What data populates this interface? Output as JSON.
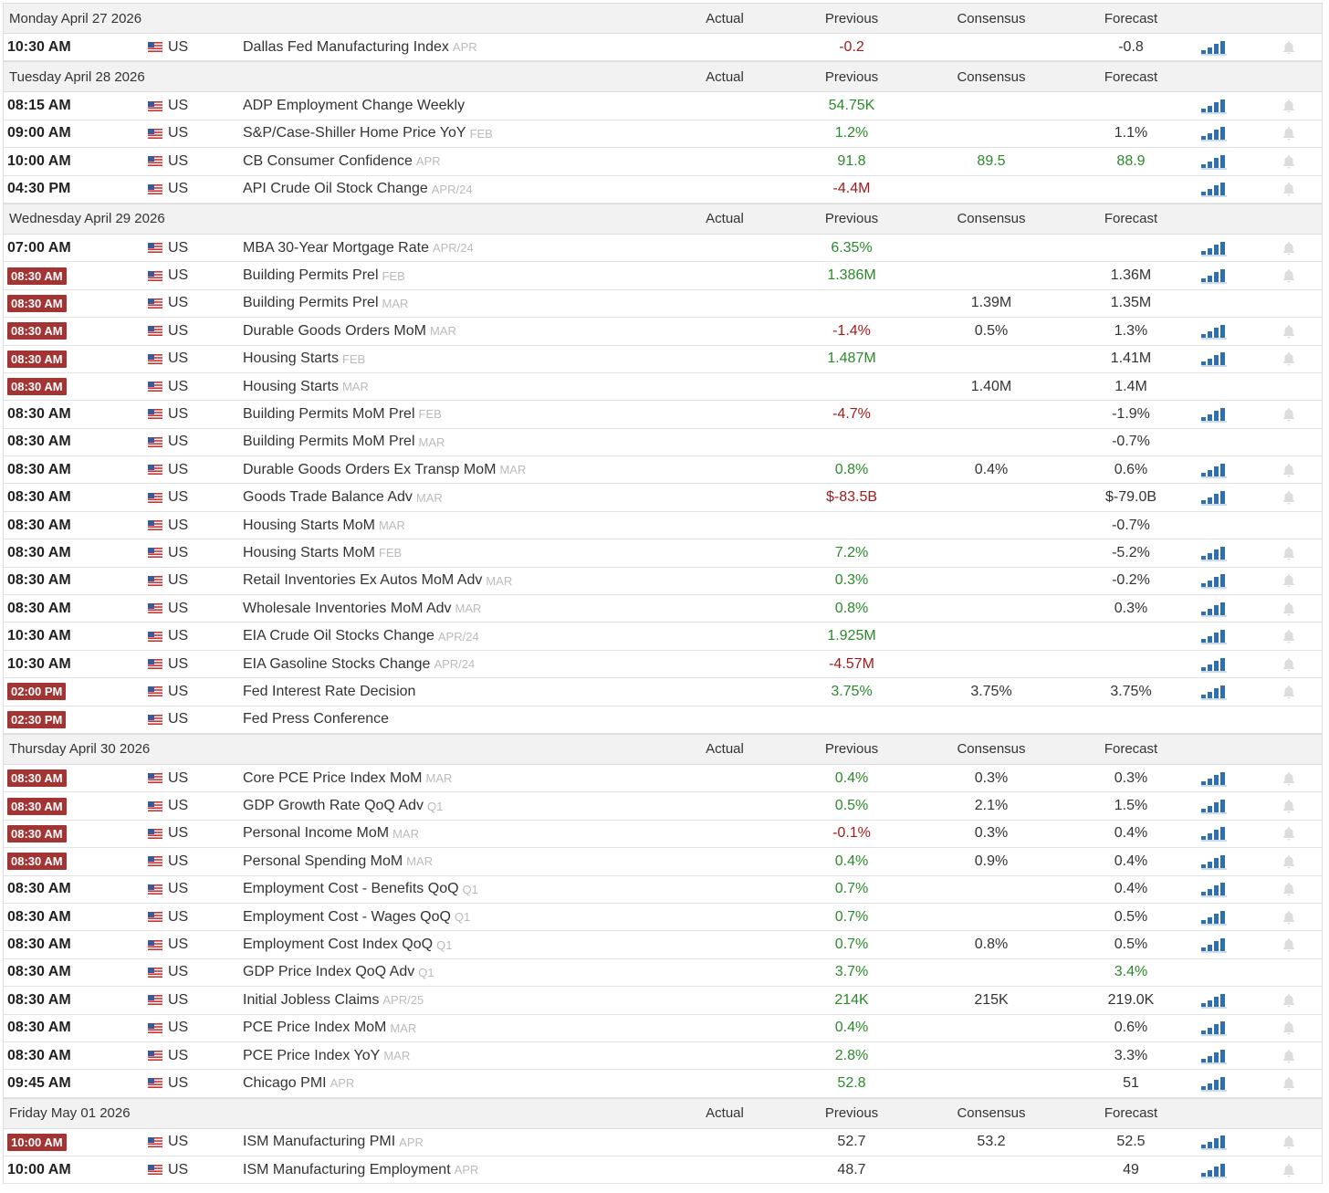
{
  "columns": [
    "Actual",
    "Previous",
    "Consensus",
    "Forecast"
  ],
  "days": [
    {
      "date": "Monday April 27 2026",
      "events": [
        {
          "time": "10:30 AM",
          "country": "US",
          "event": "Dallas Fed Manufacturing Index",
          "period": "APR",
          "previous": "-0.2",
          "previous_color": "#a01c1c",
          "forecast": "-0.8",
          "chart": true
        }
      ]
    },
    {
      "date": "Tuesday April 28 2026",
      "events": [
        {
          "time": "08:15 AM",
          "country": "US",
          "event": "ADP Employment Change Weekly",
          "previous": "54.75K",
          "previous_color": "#2a8a2a",
          "chart": true
        },
        {
          "time": "09:00 AM",
          "country": "US",
          "event": "S&P/Case-Shiller Home Price YoY",
          "period": "FEB",
          "previous": "1.2%",
          "previous_color": "#2a8a2a",
          "forecast": "1.1%",
          "chart": true
        },
        {
          "time": "10:00 AM",
          "country": "US",
          "event": "CB Consumer Confidence",
          "period": "APR",
          "previous": "91.8",
          "previous_color": "#2a8a2a",
          "consensus": "89.5",
          "consensus_color": "#2a8a2a",
          "forecast": "88.9",
          "forecast_color": "#2a8a2a",
          "chart": true
        },
        {
          "time": "04:30 PM",
          "country": "US",
          "event": "API Crude Oil Stock Change",
          "period": "APR/24",
          "previous": "-4.4M",
          "previous_color": "#a01c1c",
          "chart": true
        }
      ]
    },
    {
      "date": "Wednesday April 29 2026",
      "events": [
        {
          "time": "07:00 AM",
          "country": "US",
          "event": "MBA 30-Year Mortgage Rate",
          "period": "APR/24",
          "previous": "6.35%",
          "previous_color": "#2a8a2a",
          "chart": true
        },
        {
          "time": "08:30 AM",
          "highlight": true,
          "country": "US",
          "event": "Building Permits Prel",
          "period": "FEB",
          "previous": "1.386M",
          "previous_color": "#2a8a2a",
          "forecast": "1.36M",
          "chart": true
        },
        {
          "time": "08:30 AM",
          "highlight": true,
          "country": "US",
          "event": "Building Permits Prel",
          "period": "MAR",
          "consensus": "1.39M",
          "forecast": "1.35M"
        },
        {
          "time": "08:30 AM",
          "highlight": true,
          "country": "US",
          "event": "Durable Goods Orders MoM",
          "period": "MAR",
          "previous": "-1.4%",
          "previous_color": "#a01c1c",
          "consensus": "0.5%",
          "forecast": "1.3%",
          "chart": true
        },
        {
          "time": "08:30 AM",
          "highlight": true,
          "country": "US",
          "event": "Housing Starts",
          "period": "FEB",
          "previous": "1.487M",
          "previous_color": "#2a8a2a",
          "forecast": "1.41M",
          "chart": true
        },
        {
          "time": "08:30 AM",
          "highlight": true,
          "country": "US",
          "event": "Housing Starts",
          "period": "MAR",
          "consensus": "1.40M",
          "forecast": "1.4M"
        },
        {
          "time": "08:30 AM",
          "country": "US",
          "event": "Building Permits MoM Prel",
          "period": "FEB",
          "previous": "-4.7%",
          "previous_color": "#a01c1c",
          "forecast": "-1.9%",
          "chart": true
        },
        {
          "time": "08:30 AM",
          "country": "US",
          "event": "Building Permits MoM Prel",
          "period": "MAR",
          "forecast": "-0.7%"
        },
        {
          "time": "08:30 AM",
          "country": "US",
          "event": "Durable Goods Orders Ex Transp MoM",
          "period": "MAR",
          "previous": "0.8%",
          "previous_color": "#2a8a2a",
          "consensus": "0.4%",
          "forecast": "0.6%",
          "chart": true
        },
        {
          "time": "08:30 AM",
          "country": "US",
          "event": "Goods Trade Balance Adv",
          "period": "MAR",
          "previous": "$-83.5B",
          "previous_color": "#a01c1c",
          "forecast": "$-79.0B",
          "chart": true
        },
        {
          "time": "08:30 AM",
          "country": "US",
          "event": "Housing Starts MoM",
          "period": "MAR",
          "forecast": "-0.7%"
        },
        {
          "time": "08:30 AM",
          "country": "US",
          "event": "Housing Starts MoM",
          "period": "FEB",
          "previous": "7.2%",
          "previous_color": "#2a8a2a",
          "forecast": "-5.2%",
          "chart": true
        },
        {
          "time": "08:30 AM",
          "country": "US",
          "event": "Retail Inventories Ex Autos MoM Adv",
          "period": "MAR",
          "previous": "0.3%",
          "previous_color": "#2a8a2a",
          "forecast": "-0.2%",
          "chart": true
        },
        {
          "time": "08:30 AM",
          "country": "US",
          "event": "Wholesale Inventories MoM Adv",
          "period": "MAR",
          "previous": "0.8%",
          "previous_color": "#2a8a2a",
          "forecast": "0.3%",
          "chart": true
        },
        {
          "time": "10:30 AM",
          "country": "US",
          "event": "EIA Crude Oil Stocks Change",
          "period": "APR/24",
          "previous": "1.925M",
          "previous_color": "#2a8a2a",
          "chart": true
        },
        {
          "time": "10:30 AM",
          "country": "US",
          "event": "EIA Gasoline Stocks Change",
          "period": "APR/24",
          "previous": "-4.57M",
          "previous_color": "#a01c1c",
          "chart": true
        },
        {
          "time": "02:00 PM",
          "highlight": true,
          "country": "US",
          "event": "Fed Interest Rate Decision",
          "previous": "3.75%",
          "previous_color": "#2a8a2a",
          "consensus": "3.75%",
          "forecast": "3.75%",
          "chart": true
        },
        {
          "time": "02:30 PM",
          "highlight": true,
          "country": "US",
          "event": "Fed Press Conference"
        }
      ]
    },
    {
      "date": "Thursday April 30 2026",
      "events": [
        {
          "time": "08:30 AM",
          "highlight": true,
          "country": "US",
          "event": "Core PCE Price Index MoM",
          "period": "MAR",
          "previous": "0.4%",
          "previous_color": "#2a8a2a",
          "consensus": "0.3%",
          "forecast": "0.3%",
          "chart": true
        },
        {
          "time": "08:30 AM",
          "highlight": true,
          "country": "US",
          "event": "GDP Growth Rate QoQ Adv",
          "period": "Q1",
          "previous": "0.5%",
          "previous_color": "#2a8a2a",
          "consensus": "2.1%",
          "forecast": "1.5%",
          "chart": true
        },
        {
          "time": "08:30 AM",
          "highlight": true,
          "country": "US",
          "event": "Personal Income MoM",
          "period": "MAR",
          "previous": "-0.1%",
          "previous_color": "#a01c1c",
          "consensus": "0.3%",
          "forecast": "0.4%",
          "chart": true
        },
        {
          "time": "08:30 AM",
          "highlight": true,
          "country": "US",
          "event": "Personal Spending MoM",
          "period": "MAR",
          "previous": "0.4%",
          "previous_color": "#2a8a2a",
          "consensus": "0.9%",
          "forecast": "0.4%",
          "chart": true
        },
        {
          "time": "08:30 AM",
          "country": "US",
          "event": "Employment Cost - Benefits QoQ",
          "period": "Q1",
          "previous": "0.7%",
          "previous_color": "#2a8a2a",
          "forecast": "0.4%",
          "chart": true
        },
        {
          "time": "08:30 AM",
          "country": "US",
          "event": "Employment Cost - Wages QoQ",
          "period": "Q1",
          "previous": "0.7%",
          "previous_color": "#2a8a2a",
          "forecast": "0.5%",
          "chart": true
        },
        {
          "time": "08:30 AM",
          "country": "US",
          "event": "Employment Cost Index QoQ",
          "period": "Q1",
          "previous": "0.7%",
          "previous_color": "#2a8a2a",
          "consensus": "0.8%",
          "forecast": "0.5%",
          "chart": true
        },
        {
          "time": "08:30 AM",
          "country": "US",
          "event": "GDP Price Index QoQ Adv",
          "period": "Q1",
          "previous": "3.7%",
          "previous_color": "#2a8a2a",
          "forecast": "3.4%",
          "forecast_color": "#2a8a2a"
        },
        {
          "time": "08:30 AM",
          "country": "US",
          "event": "Initial Jobless Claims",
          "period": "APR/25",
          "previous": "214K",
          "previous_color": "#2a8a2a",
          "consensus": "215K",
          "forecast": "219.0K",
          "chart": true
        },
        {
          "time": "08:30 AM",
          "country": "US",
          "event": "PCE Price Index MoM",
          "period": "MAR",
          "previous": "0.4%",
          "previous_color": "#2a8a2a",
          "forecast": "0.6%",
          "chart": true
        },
        {
          "time": "08:30 AM",
          "country": "US",
          "event": "PCE Price Index YoY",
          "period": "MAR",
          "previous": "2.8%",
          "previous_color": "#2a8a2a",
          "forecast": "3.3%",
          "chart": true
        },
        {
          "time": "09:45 AM",
          "country": "US",
          "event": "Chicago PMI",
          "period": "APR",
          "previous": "52.8",
          "previous_color": "#2a8a2a",
          "forecast": "51",
          "chart": true
        }
      ]
    },
    {
      "date": "Friday May 01 2026",
      "events": [
        {
          "time": "10:00 AM",
          "highlight": true,
          "country": "US",
          "event": "ISM Manufacturing PMI",
          "period": "APR",
          "previous": "52.7",
          "consensus": "53.2",
          "forecast": "52.5",
          "chart": true
        },
        {
          "time": "10:00 AM",
          "country": "US",
          "event": "ISM Manufacturing Employment",
          "period": "APR",
          "previous": "48.7",
          "forecast": "49",
          "chart": true
        }
      ]
    }
  ]
}
